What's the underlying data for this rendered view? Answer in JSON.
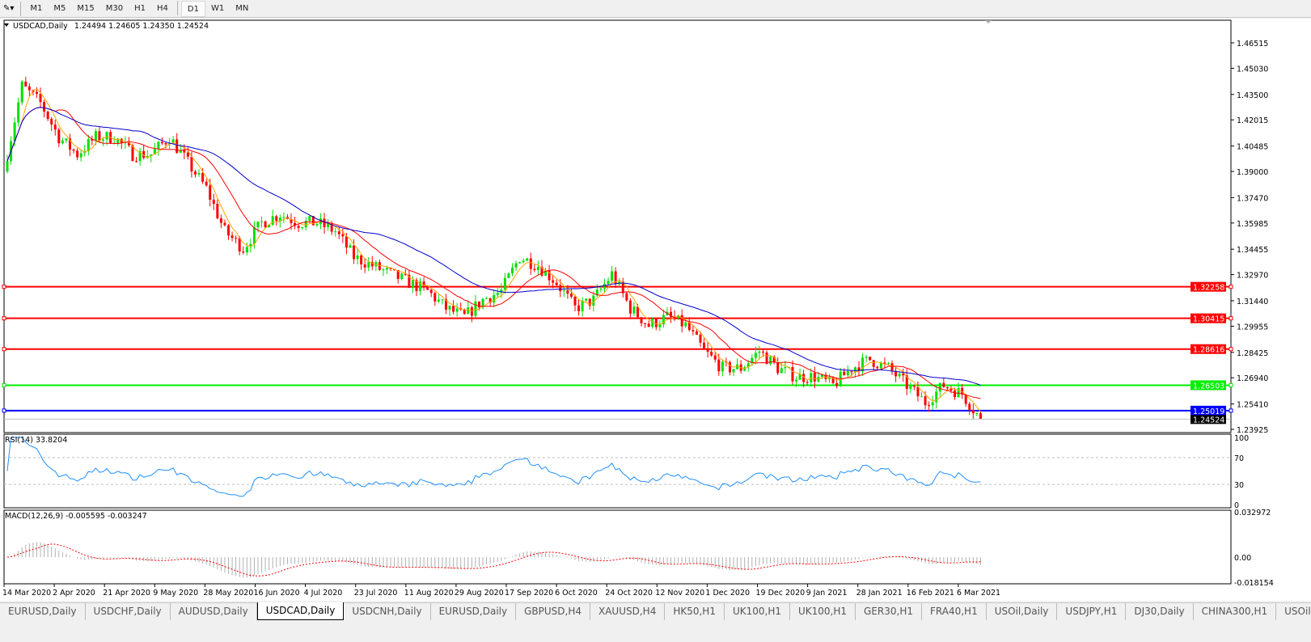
{
  "toolbar": {
    "timeframes": [
      "M1",
      "M5",
      "M15",
      "M30",
      "H1",
      "H4",
      "D1",
      "W1",
      "MN"
    ],
    "active": "D1"
  },
  "chart_header": {
    "symbol": "USDCAD,Daily",
    "ohlc": "1.24494 1.24605 1.24350 1.24524"
  },
  "colors": {
    "bull": "#00e000",
    "bear": "#ff0000",
    "ma_fast": "#ffa500",
    "ma_mid": "#ff0000",
    "ma_slow": "#0000cc",
    "rsi": "#1e90ff",
    "macd_signal": "#ff0000",
    "macd_hist": "#b0b0b0"
  },
  "chart_data": {
    "type": "candlestick",
    "price_ticks": [
      "1.46515",
      "1.45030",
      "1.43500",
      "1.42015",
      "1.40485",
      "1.39000",
      "1.37470",
      "1.35985",
      "1.34455",
      "1.32970",
      "1.31440",
      "1.29955",
      "1.28425",
      "1.26940",
      "1.25410",
      "1.23925"
    ],
    "ylim": [
      1.23925,
      1.46515
    ],
    "x_tick_labels": [
      "14 Mar 2020",
      "2 Apr 2020",
      "21 Apr 2020",
      "9 May 2020",
      "28 May 2020",
      "16 Jun 2020",
      "4 Jul 2020",
      "23 Jul 2020",
      "11 Aug 2020",
      "29 Aug 2020",
      "17 Sep 2020",
      "6 Oct 2020",
      "24 Oct 2020",
      "12 Nov 2020",
      "1 Dec 2020",
      "19 Dec 2020",
      "9 Jan 2021",
      "28 Jan 2021",
      "16 Feb 2021",
      "6 Mar 2021"
    ],
    "approx_weekly_closes": [
      1.39,
      1.44,
      1.43,
      1.41,
      1.4,
      1.41,
      1.41,
      1.4,
      1.4,
      1.41,
      1.395,
      1.38,
      1.355,
      1.345,
      1.36,
      1.365,
      1.36,
      1.36,
      1.355,
      1.34,
      1.335,
      1.33,
      1.325,
      1.32,
      1.31,
      1.305,
      1.315,
      1.32,
      1.34,
      1.335,
      1.325,
      1.31,
      1.315,
      1.33,
      1.31,
      1.3,
      1.305,
      1.3,
      1.285,
      1.275,
      1.275,
      1.285,
      1.275,
      1.27,
      1.27,
      1.265,
      1.275,
      1.28,
      1.275,
      1.265,
      1.255,
      1.265,
      1.26,
      1.24524
    ],
    "last_price": "1.24524",
    "horizontal_lines": [
      {
        "price": 1.32258,
        "label": "1.32258",
        "color": "#ff0000"
      },
      {
        "price": 1.30415,
        "label": "1.30415",
        "color": "#ff0000"
      },
      {
        "price": 1.28616,
        "label": "1.28616",
        "color": "#ff0000"
      },
      {
        "price": 1.26503,
        "label": "1.26503",
        "color": "#00ee00"
      },
      {
        "price": 1.25019,
        "label": "1.25019",
        "color": "#0000ff"
      }
    ],
    "rsi": {
      "label": "RSI(14) 33.8204",
      "value": 33.8204,
      "ticks": [
        "100",
        "70",
        "30",
        "0"
      ],
      "levels": [
        70,
        30
      ]
    },
    "macd": {
      "label": "MACD(12,26,9) -0.005595 -0.003247",
      "main": -0.005595,
      "signal": -0.003247,
      "ticks": [
        "0.032972",
        "0.00",
        "-0.018154"
      ],
      "ylim": [
        -0.018154,
        0.032972
      ]
    }
  },
  "tabs": [
    "EURUSD,Daily",
    "USDCHF,Daily",
    "AUDUSD,Daily",
    "USDCAD,Daily",
    "USDCNH,Daily",
    "EURUSD,Daily",
    "GBPUSD,H4",
    "XAUUSD,H4",
    "HK50,H1",
    "UK100,H1",
    "UK100,H1",
    "GER30,H1",
    "FRA40,H1",
    "USOil,Daily",
    "USDJPY,H1",
    "DJ30,Daily",
    "CHINA300,H1",
    "USOil,"
  ],
  "active_tab": "USDCAD,Daily"
}
